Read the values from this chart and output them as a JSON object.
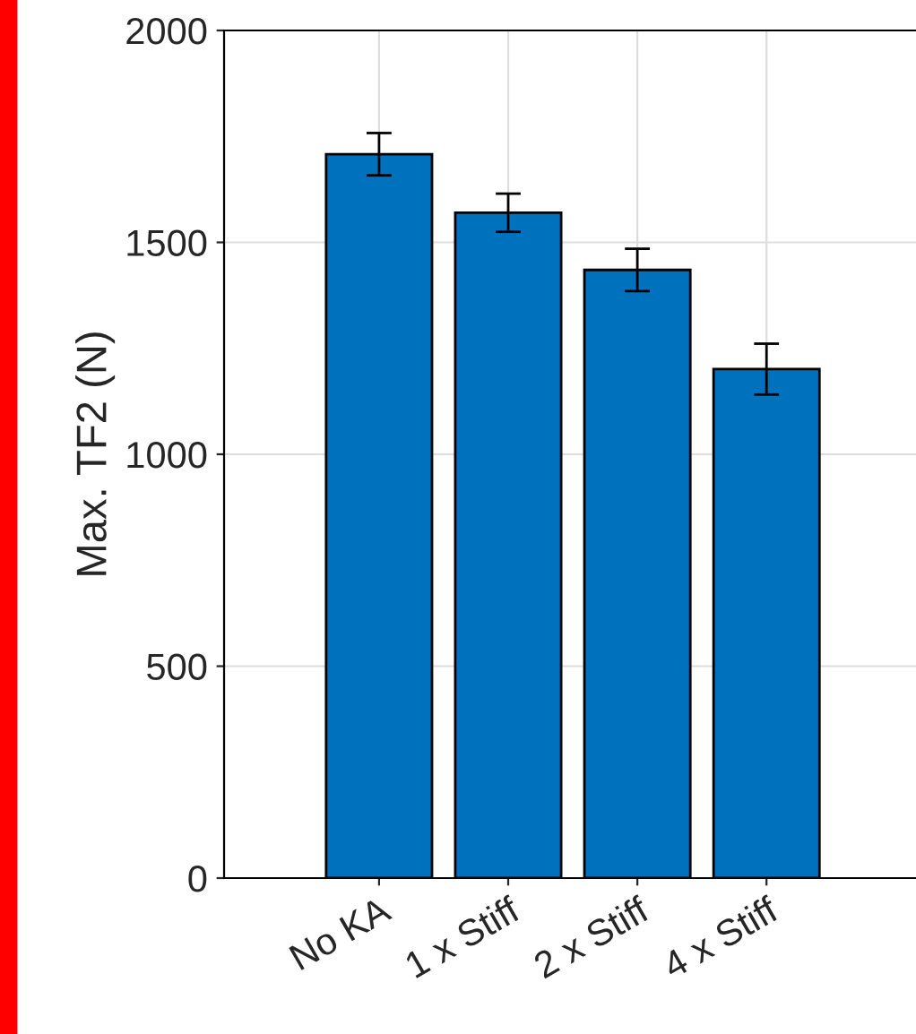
{
  "chart_data": {
    "type": "bar",
    "ylabel": "Max. TF2 (N)",
    "categories": [
      "No KA",
      "1 x Stiff",
      "2 x Stiff",
      "4 x Stiff"
    ],
    "values": [
      1708,
      1570,
      1435,
      1201
    ],
    "color": "#0072bd",
    "errors": [
      50,
      45,
      50,
      60
    ],
    "ylim": [
      0,
      2000
    ],
    "yticks": [
      0,
      500,
      1000,
      1500,
      2000
    ],
    "grid": true
  }
}
